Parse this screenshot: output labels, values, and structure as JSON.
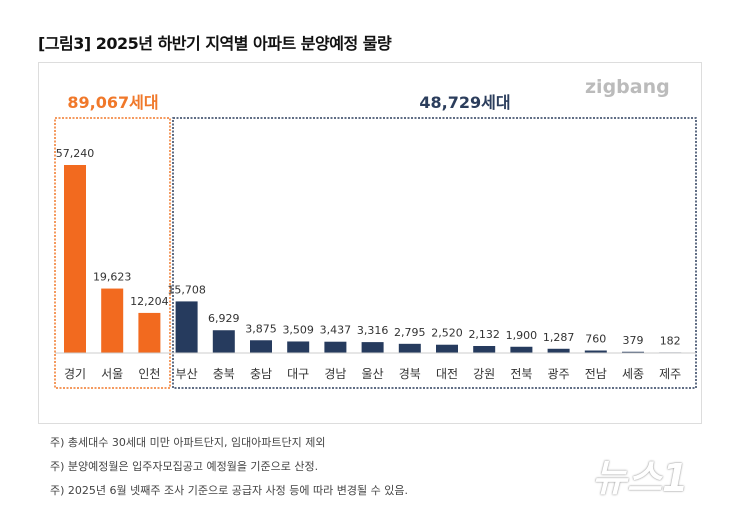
{
  "title": "[그림3] 2025년 하반기 지역별 아파트 분양예정 물량",
  "logo": "zigbang",
  "chart_data": {
    "type": "bar",
    "categories": [
      "경기",
      "서울",
      "인천",
      "부산",
      "충북",
      "충남",
      "대구",
      "경남",
      "울산",
      "경북",
      "대전",
      "강원",
      "전북",
      "광주",
      "전남",
      "세종",
      "제주"
    ],
    "values": [
      57240,
      19623,
      12204,
      15708,
      6929,
      3875,
      3509,
      3437,
      3316,
      2795,
      2520,
      2132,
      1900,
      1287,
      760,
      379,
      182
    ],
    "data_labels": [
      "57,240",
      "19,623",
      "12,204",
      "15,708",
      "6,929",
      "3,875",
      "3,509",
      "3,437",
      "3,316",
      "2,795",
      "2,520",
      "2,132",
      "1,900",
      "1,287",
      "760",
      "379",
      "182"
    ],
    "groups": [
      {
        "label": "89,067세대",
        "count": 3,
        "color": "#F0782A"
      },
      {
        "label": "48,729세대",
        "count": 14,
        "color": "#2B3D5C"
      }
    ],
    "bar_colors": {
      "capital": "#F26A1F",
      "other": "#263B5E"
    },
    "ylim": [
      0,
      60000
    ],
    "grid": false
  },
  "notes": [
    "주) 총세대수 30세대 미만 아파트단지, 임대아파트단지 제외",
    "주) 분양예정월은 입주자모집공고 예정월을 기준으로 산정.",
    "주) 2025년 6월 넷째주 조사 기준으로 공급자 사정 등에 따라 변경될 수 있음."
  ],
  "watermark": "뉴스1"
}
